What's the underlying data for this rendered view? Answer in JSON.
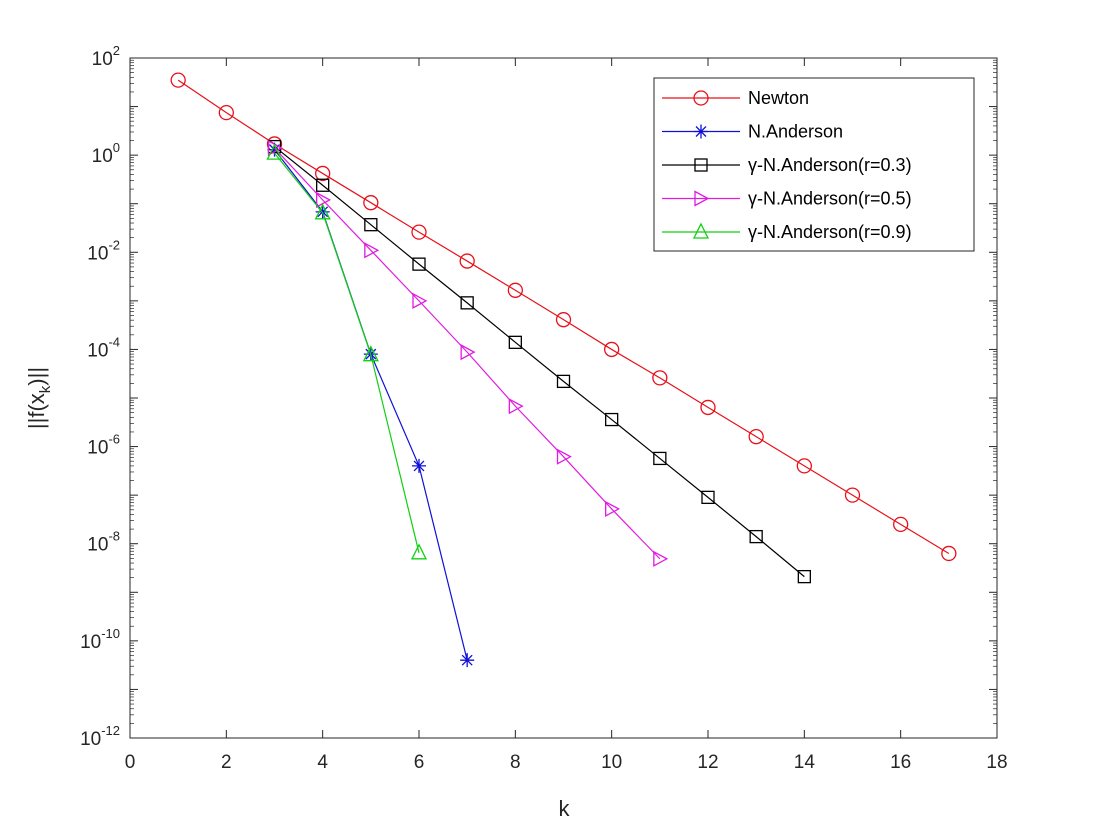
{
  "chart_data": {
    "type": "line",
    "xlabel": "k",
    "ylabel": "||f(x",
    "ylabel_sub": "k",
    "ylabel_tail": ")||",
    "xlim": [
      0,
      18
    ],
    "ylim_log10": [
      -12,
      2
    ],
    "y_scale": "log",
    "x_ticks": [
      0,
      2,
      4,
      6,
      8,
      10,
      12,
      14,
      16,
      18
    ],
    "y_tick_exponents": [
      2,
      0,
      -2,
      -4,
      -6,
      -8,
      -10,
      -12
    ],
    "y_tick_base": "10",
    "grid": false,
    "legend_position": "top-right",
    "series": [
      {
        "name": "Newton",
        "color": "#e8101a",
        "marker": "circle",
        "x": [
          1,
          2,
          3,
          4,
          5,
          6,
          7,
          8,
          9,
          10,
          11,
          12,
          13,
          14,
          15,
          16,
          17
        ],
        "y": [
          35,
          7.5,
          1.7,
          0.42,
          0.105,
          0.026,
          0.0066,
          0.00165,
          0.00041,
          0.0001,
          2.6e-05,
          6.4e-06,
          1.6e-06,
          4e-07,
          1e-07,
          2.5e-08,
          6.3e-09
        ]
      },
      {
        "name": "N.Anderson",
        "color": "#1010d8",
        "marker": "star",
        "x": [
          3,
          4,
          5,
          6,
          7
        ],
        "y": [
          1.3,
          0.068,
          8e-05,
          4e-07,
          4e-11
        ]
      },
      {
        "name": "γ-N.Anderson(r=0.3)",
        "color": "#000000",
        "marker": "square",
        "x": [
          3,
          4,
          5,
          6,
          7,
          8,
          9,
          10,
          11,
          12,
          13,
          14
        ],
        "y": [
          1.5,
          0.24,
          0.037,
          0.0057,
          0.00091,
          0.00014,
          2.2e-05,
          3.6e-06,
          5.7e-07,
          9e-08,
          1.4e-08,
          2.1e-09
        ]
      },
      {
        "name": "γ-N.Anderson(r=0.5)",
        "color": "#e11be1",
        "marker": "triangle-right",
        "x": [
          3,
          4,
          5,
          6,
          7,
          8,
          9,
          10,
          11
        ],
        "y": [
          1.4,
          0.12,
          0.011,
          0.001,
          8.8e-05,
          6.8e-06,
          6.2e-07,
          5.2e-08,
          4.9e-09
        ]
      },
      {
        "name": "γ-N.Anderson(r=0.9)",
        "color": "#10d010",
        "marker": "triangle-up",
        "x": [
          3,
          4,
          5,
          6
        ],
        "y": [
          1.1,
          0.065,
          7.8e-05,
          6.5e-09
        ]
      }
    ]
  }
}
